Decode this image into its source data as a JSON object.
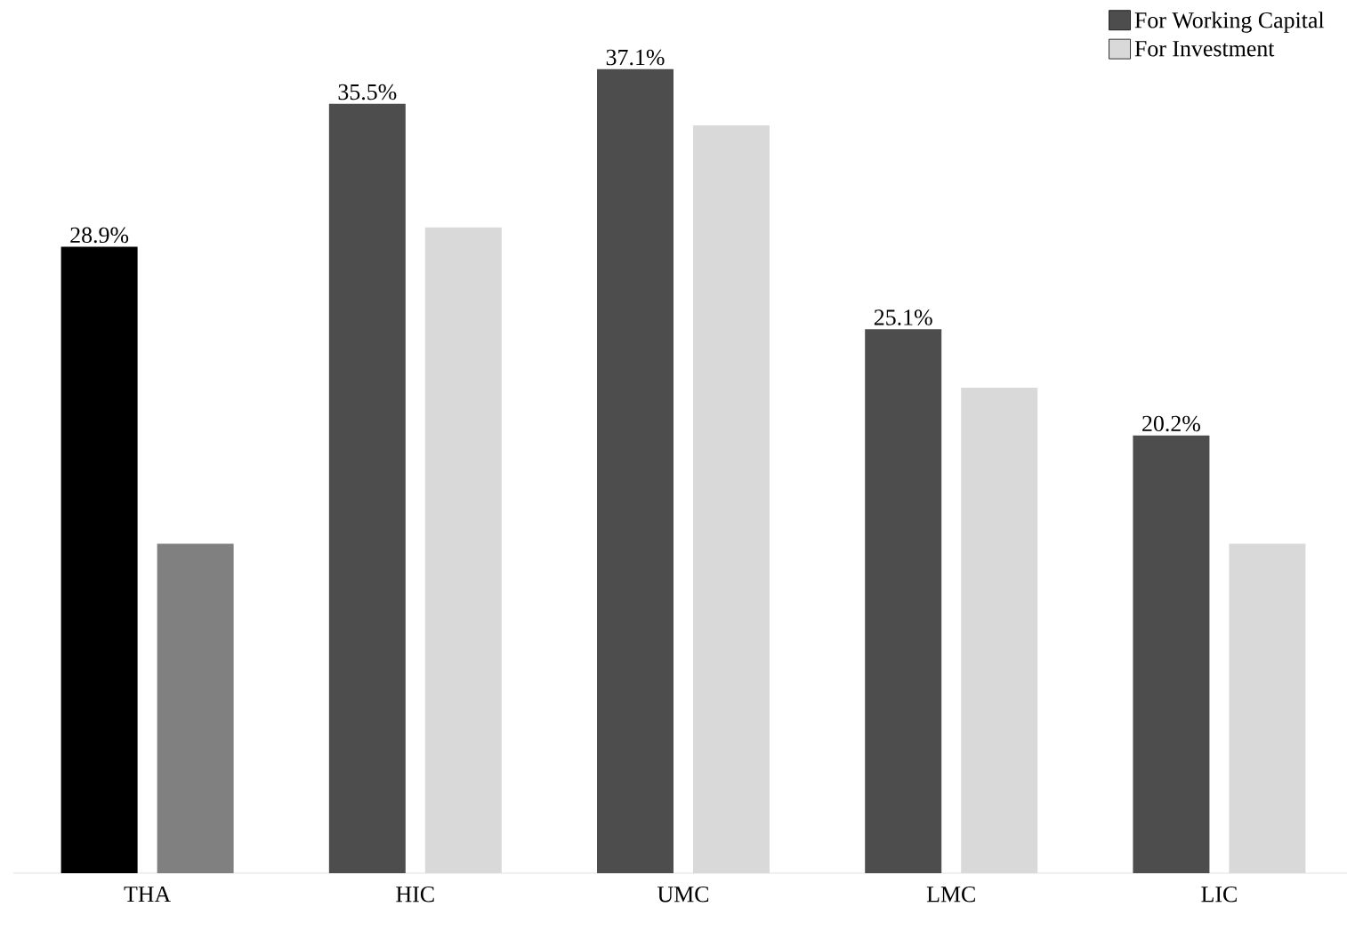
{
  "chart_data": {
    "type": "bar",
    "categories": [
      "THA",
      "HIC",
      "UMC",
      "LMC",
      "LIC"
    ],
    "series": [
      {
        "name": "For Working Capital",
        "color": "#4d4d4d",
        "colors": [
          "#000000",
          "#4d4d4d",
          "#4d4d4d",
          "#4d4d4d",
          "#4d4d4d"
        ],
        "values": [
          28.9,
          35.5,
          37.1,
          25.1,
          20.2
        ],
        "value_labels": [
          "28.9%",
          "35.5%",
          "37.1%",
          "25.1%",
          "20.2%"
        ]
      },
      {
        "name": "For Investment",
        "color": "#d9d9d9",
        "colors": [
          "#808080",
          "#d9d9d9",
          "#d9d9d9",
          "#d9d9d9",
          "#d9d9d9"
        ],
        "values": [
          15.2,
          29.8,
          34.5,
          22.4,
          15.2
        ]
      }
    ],
    "legend": "top right"
  }
}
